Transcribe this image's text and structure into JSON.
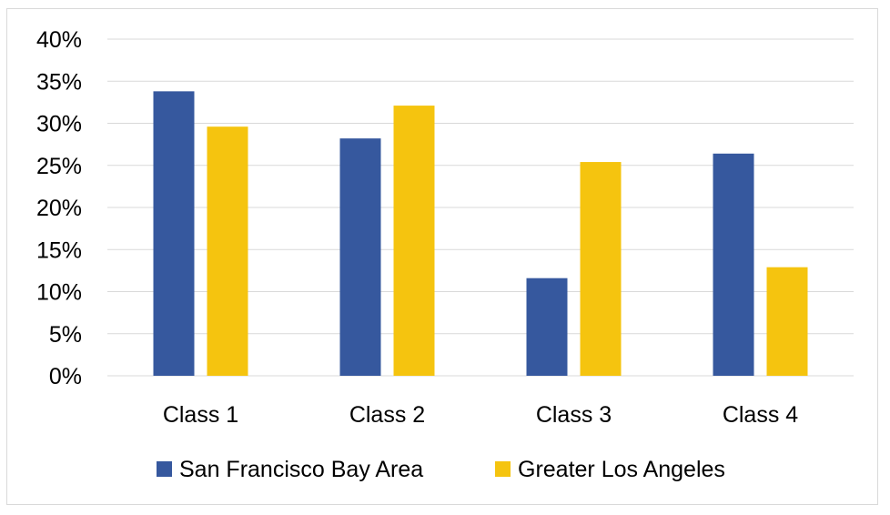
{
  "chart_data": {
    "type": "bar",
    "categories": [
      "Class 1",
      "Class 2",
      "Class 3",
      "Class 4"
    ],
    "series": [
      {
        "name": "San Francisco Bay Area",
        "color": "#36589e",
        "values": [
          33.8,
          28.2,
          11.6,
          26.4
        ]
      },
      {
        "name": "Greater Los Angeles",
        "color": "#f5c40f",
        "values": [
          29.6,
          32.1,
          25.4,
          12.9
        ]
      }
    ],
    "y_ticks": [
      "0%",
      "5%",
      "10%",
      "15%",
      "20%",
      "25%",
      "30%",
      "35%",
      "40%"
    ],
    "ylim": [
      0,
      40
    ],
    "y_step": 5,
    "grid": true,
    "legend_position": "bottom",
    "title": "",
    "xlabel": "",
    "ylabel": ""
  }
}
